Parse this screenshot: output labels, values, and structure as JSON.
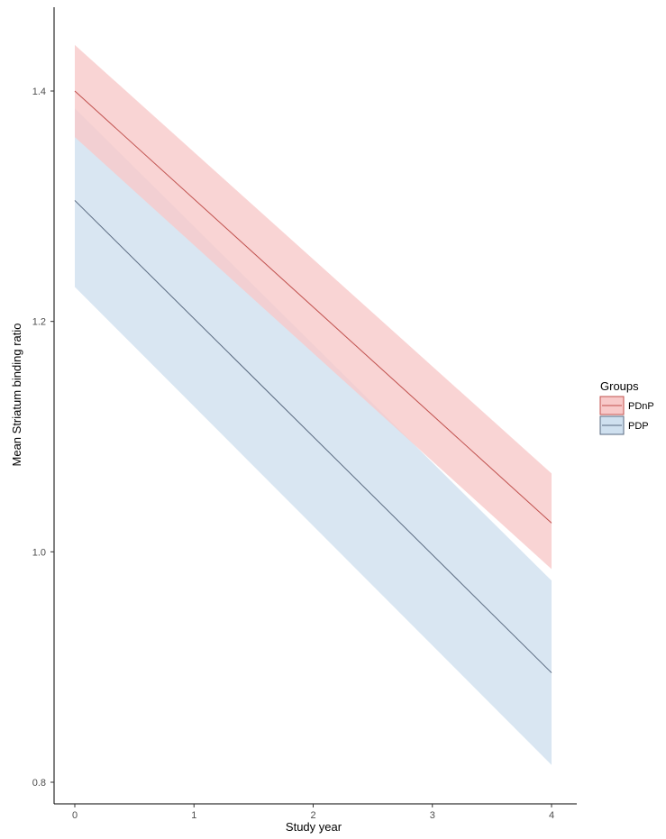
{
  "chart_data": {
    "type": "line",
    "xlabel": "Study year",
    "ylabel": "Mean Striatum binding ratio",
    "xlim": [
      0,
      4
    ],
    "ylim": [
      0.8,
      1.45
    ],
    "x_ticks": [
      "0",
      "1",
      "2",
      "3",
      "4"
    ],
    "y_ticks": [
      "0.8",
      "1.0",
      "1.2",
      "1.4"
    ],
    "x_tick_values": [
      0,
      1,
      2,
      3,
      4
    ],
    "y_tick_values": [
      0.8,
      1.0,
      1.2,
      1.4
    ],
    "grid": false,
    "legend": {
      "title": "Groups",
      "placement": "right"
    },
    "series": [
      {
        "name": "PDnP",
        "color": "#c0504d",
        "fill": "#f8c9c9",
        "x": [
          0,
          4
        ],
        "y": [
          1.4,
          1.025
        ],
        "ci_lower": [
          1.36,
          0.985
        ],
        "ci_upper": [
          1.44,
          1.068
        ]
      },
      {
        "name": "PDP",
        "color": "#5a6a80",
        "fill": "#cfe0ef",
        "x": [
          0,
          4
        ],
        "y": [
          1.305,
          0.895
        ],
        "ci_lower": [
          1.23,
          0.815
        ],
        "ci_upper": [
          1.385,
          0.975
        ]
      }
    ]
  }
}
